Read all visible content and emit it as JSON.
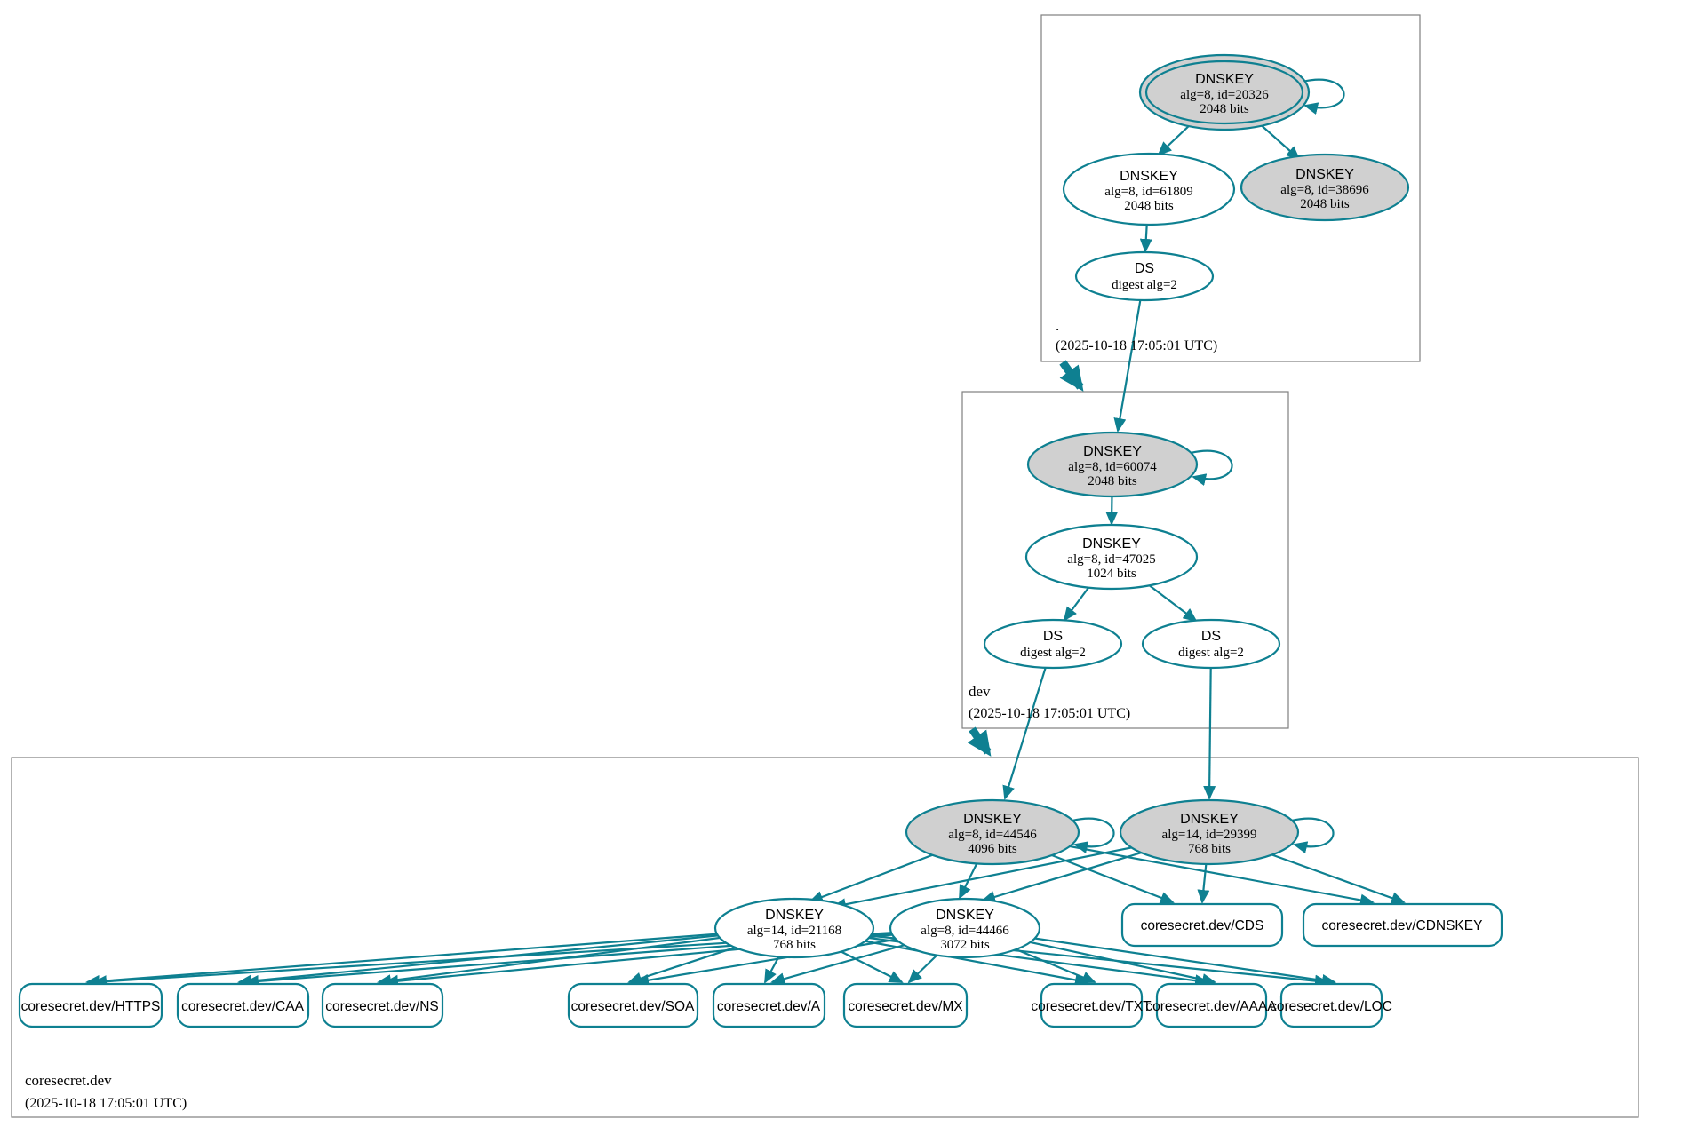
{
  "colors": {
    "secure": "#0e8091",
    "ksk_fill": "#d0d0d0",
    "zone_border": "#7f7f7f"
  },
  "zones": {
    "root": {
      "label": ".",
      "timestamp": "(2025-10-18 17:05:01 UTC)"
    },
    "dev": {
      "label": "dev",
      "timestamp": "(2025-10-18 17:05:01 UTC)"
    },
    "coresecret": {
      "label": "coresecret.dev",
      "timestamp": "(2025-10-18 17:05:01 UTC)"
    }
  },
  "nodes": {
    "root_ksk": {
      "title": "DNSKEY",
      "detail": "alg=8, id=20326",
      "bits": "2048 bits"
    },
    "root_zsk": {
      "title": "DNSKEY",
      "detail": "alg=8, id=61809",
      "bits": "2048 bits"
    },
    "root_ksk2": {
      "title": "DNSKEY",
      "detail": "alg=8, id=38696",
      "bits": "2048 bits"
    },
    "root_ds": {
      "title": "DS",
      "detail": "digest alg=2"
    },
    "dev_ksk": {
      "title": "DNSKEY",
      "detail": "alg=8, id=60074",
      "bits": "2048 bits"
    },
    "dev_zsk": {
      "title": "DNSKEY",
      "detail": "alg=8, id=47025",
      "bits": "1024 bits"
    },
    "dev_ds1": {
      "title": "DS",
      "detail": "digest alg=2"
    },
    "dev_ds2": {
      "title": "DS",
      "detail": "digest alg=2"
    },
    "cs_ksk1": {
      "title": "DNSKEY",
      "detail": "alg=8, id=44546",
      "bits": "4096 bits"
    },
    "cs_ksk2": {
      "title": "DNSKEY",
      "detail": "alg=14, id=29399",
      "bits": "768 bits"
    },
    "cs_zsk1": {
      "title": "DNSKEY",
      "detail": "alg=14, id=21168",
      "bits": "768 bits"
    },
    "cs_zsk2": {
      "title": "DNSKEY",
      "detail": "alg=8, id=44466",
      "bits": "3072 bits"
    }
  },
  "rrsets": {
    "cds": {
      "label": "coresecret.dev/CDS"
    },
    "cdnskey": {
      "label": "coresecret.dev/CDNSKEY"
    },
    "https": {
      "label": "coresecret.dev/HTTPS"
    },
    "caa": {
      "label": "coresecret.dev/CAA"
    },
    "ns": {
      "label": "coresecret.dev/NS"
    },
    "soa": {
      "label": "coresecret.dev/SOA"
    },
    "a": {
      "label": "coresecret.dev/A"
    },
    "mx": {
      "label": "coresecret.dev/MX"
    },
    "txt": {
      "label": "coresecret.dev/TXT"
    },
    "aaaa": {
      "label": "coresecret.dev/AAAA"
    },
    "loc": {
      "label": "coresecret.dev/LOC"
    }
  }
}
